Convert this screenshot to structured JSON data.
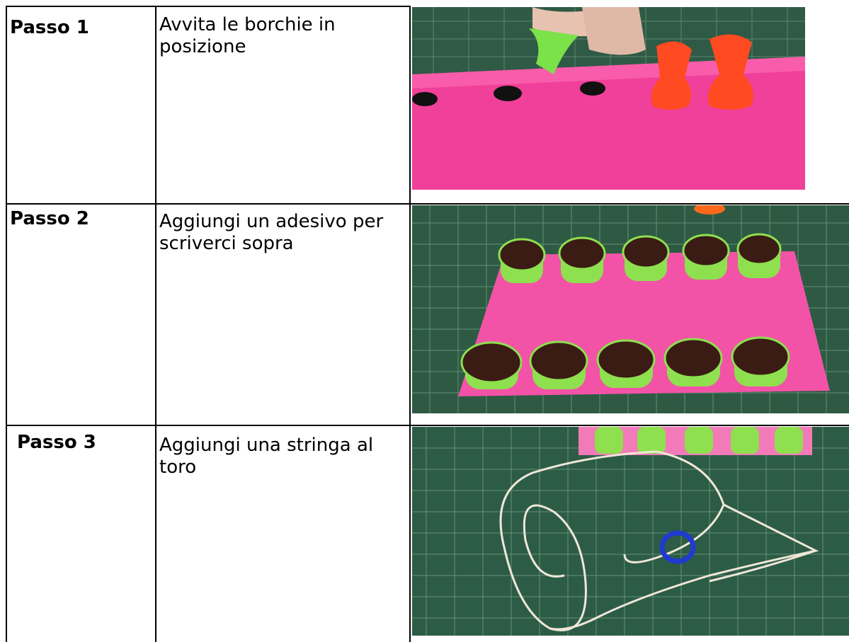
{
  "table": {
    "rows": [
      {
        "step": "Passo 1",
        "text": "Avvita le borchie in posizione"
      },
      {
        "step": "Passo 2",
        "text": "Aggiungi un adesivo per scriverci sopra"
      },
      {
        "step": "Passo 3",
        "text": "Aggiungi una stringa al toro"
      }
    ]
  }
}
